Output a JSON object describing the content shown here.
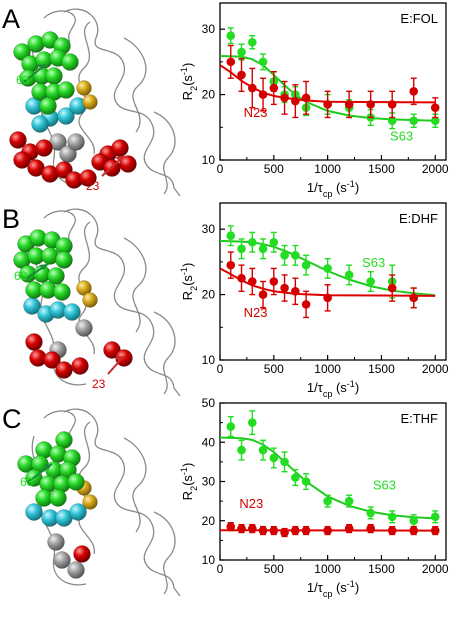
{
  "colors": {
    "green": "#22dd22",
    "green_fit": "#1ecb1e",
    "red": "#d40000",
    "red_fit": "#e00000",
    "cyan": "#33c6d6",
    "gold": "#d6a91c",
    "gray": "#9a9a9a",
    "backbone": "#8a8a8a",
    "axis": "#000000"
  },
  "panels": [
    {
      "letter": "A",
      "structure": {
        "green_label": "63",
        "red_label": "23"
      },
      "chart_data": {
        "type": "scatter",
        "title": "E:FOL",
        "xlabel_main": "1/τ",
        "xlabel_sub": "cp",
        "xlabel_unit": " (s",
        "xlabel_exp": "-1",
        "xlabel_close": ")",
        "ylabel_main": "R",
        "ylabel_sub": "2",
        "ylabel_unit": "(s",
        "ylabel_exp": "-1",
        "ylabel_close": ")",
        "xlim": [
          0,
          2100
        ],
        "ylim": [
          10,
          34
        ],
        "xticks": [
          0,
          500,
          1000,
          1500,
          2000
        ],
        "xtick_labels": [
          "0",
          "500",
          "1000",
          "1500",
          "2000"
        ],
        "yticks": [
          10,
          20,
          30
        ],
        "ytick_labels": [
          "10",
          "20",
          "30"
        ],
        "grid": false,
        "series": [
          {
            "name": "S63",
            "color_key": "green",
            "x": [
              100,
              200,
              300,
              400,
              500,
              600,
              700,
              800,
              1000,
              1200,
              1400,
              1600,
              1800,
              2000
            ],
            "y": [
              29,
              26.5,
              28,
              25,
              22,
              20,
              20,
              18,
              18.5,
              18,
              16.5,
              16,
              16,
              16
            ],
            "err": [
              1.2,
              1.2,
              1.0,
              1.2,
              1.5,
              1.2,
              1.2,
              1.2,
              1.5,
              1.2,
              1.2,
              1.2,
              1.0,
              1.0
            ],
            "fit": [
              [
                0,
                25.9
              ],
              [
                200,
                25.8
              ],
              [
                300,
                25.4
              ],
              [
                400,
                24.5
              ],
              [
                500,
                23.0
              ],
              [
                600,
                21.4
              ],
              [
                700,
                20.0
              ],
              [
                800,
                18.9
              ],
              [
                1000,
                17.5
              ],
              [
                1200,
                16.8
              ],
              [
                1400,
                16.4
              ],
              [
                1600,
                16.2
              ],
              [
                2000,
                16.0
              ]
            ]
          },
          {
            "name": "N23",
            "color_key": "red",
            "x": [
              100,
              200,
              300,
              400,
              500,
              600,
              700,
              800,
              1000,
              1200,
              1400,
              1600,
              1800,
              2000
            ],
            "y": [
              25,
              23,
              21,
              20,
              21,
              19.5,
              19,
              19.5,
              18.5,
              18.5,
              18.5,
              18.5,
              20.5,
              18
            ],
            "err": [
              2.5,
              2.5,
              3.0,
              2.5,
              2.5,
              2.5,
              2.5,
              2.5,
              2.0,
              2.0,
              2.0,
              2.0,
              2.0,
              1.5
            ],
            "fit": [
              [
                0,
                24.5
              ],
              [
                100,
                23.4
              ],
              [
                200,
                22.1
              ],
              [
                300,
                21.1
              ],
              [
                400,
                20.3
              ],
              [
                500,
                19.8
              ],
              [
                600,
                19.5
              ],
              [
                800,
                19.1
              ],
              [
                1000,
                18.9
              ],
              [
                2000,
                18.8
              ]
            ]
          }
        ],
        "annotations": [
          {
            "text": "N23",
            "color_key": "red",
            "x": 220,
            "y": 16.6
          },
          {
            "text": "S63",
            "color_key": "green",
            "x": 1580,
            "y": 13.0
          }
        ]
      }
    },
    {
      "letter": "B",
      "structure": {
        "green_label": "63",
        "red_label": "23"
      },
      "chart_data": {
        "type": "scatter",
        "title": "E:DHF",
        "xlabel_main": "1/τ",
        "xlabel_sub": "cp",
        "xlabel_unit": " (s",
        "xlabel_exp": "-1",
        "xlabel_close": ")",
        "ylabel_main": "R",
        "ylabel_sub": "2",
        "ylabel_unit": "(s",
        "ylabel_exp": "-1",
        "ylabel_close": ")",
        "xlim": [
          0,
          2100
        ],
        "ylim": [
          10,
          34
        ],
        "xticks": [
          0,
          500,
          1000,
          1500,
          2000
        ],
        "xtick_labels": [
          "0",
          "500",
          "1000",
          "1500",
          "2000"
        ],
        "yticks": [
          10,
          20,
          30
        ],
        "ytick_labels": [
          "10",
          "20",
          "30"
        ],
        "grid": false,
        "series": [
          {
            "name": "S63",
            "color_key": "green",
            "x": [
              100,
              200,
              300,
              400,
              500,
              600,
              700,
              800,
              1000,
              1200,
              1400,
              1600,
              1800
            ],
            "y": [
              29,
              27,
              28,
              27,
              28,
              26,
              26,
              24.5,
              24,
              23,
              22,
              22,
              19.5
            ],
            "err": [
              1.5,
              1.5,
              1.5,
              1.5,
              1.5,
              1.5,
              1.5,
              1.5,
              1.5,
              1.5,
              1.5,
              2.5,
              1.5
            ],
            "fit": [
              [
                0,
                28.2
              ],
              [
                200,
                28.1
              ],
              [
                300,
                28.0
              ],
              [
                400,
                27.7
              ],
              [
                500,
                27.3
              ],
              [
                600,
                26.7
              ],
              [
                700,
                26.0
              ],
              [
                800,
                25.2
              ],
              [
                1000,
                23.6
              ],
              [
                1200,
                22.3
              ],
              [
                1400,
                21.3
              ],
              [
                1600,
                20.6
              ],
              [
                1800,
                20.2
              ],
              [
                2000,
                19.9
              ]
            ]
          },
          {
            "name": "N23",
            "color_key": "red",
            "x": [
              100,
              200,
              300,
              400,
              500,
              600,
              700,
              800,
              1000,
              1600,
              1800
            ],
            "y": [
              24.5,
              22.5,
              22,
              20,
              22,
              21,
              20.5,
              18.5,
              19.5,
              21,
              19.5
            ],
            "err": [
              2.0,
              2.0,
              2.0,
              2.0,
              2.0,
              2.0,
              2.0,
              2.0,
              2.0,
              2.0,
              1.5
            ],
            "fit": [
              [
                0,
                24.0
              ],
              [
                100,
                23.1
              ],
              [
                200,
                22.2
              ],
              [
                300,
                21.4
              ],
              [
                400,
                20.9
              ],
              [
                500,
                20.5
              ],
              [
                700,
                20.1
              ],
              [
                1000,
                19.9
              ],
              [
                2000,
                19.8
              ]
            ]
          }
        ],
        "annotations": [
          {
            "text": "S63",
            "color_key": "green",
            "x": 1320,
            "y": 24.2
          },
          {
            "text": "N23",
            "color_key": "red",
            "x": 220,
            "y": 16.6
          }
        ]
      }
    },
    {
      "letter": "C",
      "structure": {
        "green_label": "63",
        "red_label": ""
      },
      "chart_data": {
        "type": "scatter",
        "title": "E:THF",
        "xlabel_main": "1/τ",
        "xlabel_sub": "cp",
        "xlabel_unit": " (s",
        "xlabel_exp": "-1",
        "xlabel_close": ")",
        "ylabel_main": "R",
        "ylabel_sub": "2",
        "ylabel_unit": "(s",
        "ylabel_exp": "-1",
        "ylabel_close": ")",
        "xlim": [
          0,
          2100
        ],
        "ylim": [
          10,
          50
        ],
        "xticks": [
          0,
          500,
          1000,
          1500,
          2000
        ],
        "xtick_labels": [
          "0",
          "500",
          "1000",
          "1500",
          "2000"
        ],
        "yticks": [
          10,
          20,
          30,
          40,
          50
        ],
        "ytick_labels": [
          "10",
          "20",
          "30",
          "40",
          "50"
        ],
        "grid": false,
        "series": [
          {
            "name": "S63",
            "color_key": "green",
            "x": [
              100,
              200,
              300,
              400,
              500,
              600,
              700,
              800,
              1000,
              1200,
              1400,
              1600,
              1800,
              2000
            ],
            "y": [
              44,
              38,
              45,
              38,
              36,
              35,
              31,
              30,
              25,
              25,
              22,
              21,
              20,
              21
            ],
            "err": [
              2.5,
              2.5,
              3.0,
              2.5,
              2.5,
              2.5,
              2.0,
              2.0,
              1.5,
              1.5,
              1.5,
              1.5,
              1.5,
              1.5
            ],
            "fit": [
              [
                0,
                41.2
              ],
              [
                200,
                41.0
              ],
              [
                300,
                40.6
              ],
              [
                400,
                39.4
              ],
              [
                500,
                37.5
              ],
              [
                600,
                35.0
              ],
              [
                700,
                32.5
              ],
              [
                800,
                30.0
              ],
              [
                1000,
                26.2
              ],
              [
                1200,
                23.8
              ],
              [
                1400,
                22.3
              ],
              [
                1600,
                21.4
              ],
              [
                1800,
                20.9
              ],
              [
                2000,
                20.6
              ]
            ]
          },
          {
            "name": "N23",
            "color_key": "red",
            "x": [
              100,
              200,
              300,
              400,
              500,
              600,
              700,
              800,
              1000,
              1200,
              1400,
              1600,
              1800,
              2000
            ],
            "y": [
              18.5,
              18,
              18,
              17.5,
              17.5,
              17,
              17.5,
              17.5,
              17.5,
              18,
              18,
              17.5,
              17.5,
              17.5
            ],
            "err": [
              1.0,
              1.0,
              1.0,
              1.0,
              1.0,
              1.0,
              1.0,
              1.0,
              1.0,
              1.0,
              1.0,
              1.0,
              1.0,
              1.0
            ],
            "fit": [
              [
                0,
                17.6
              ],
              [
                2000,
                17.5
              ]
            ]
          }
        ],
        "annotations": [
          {
            "text": "S63",
            "color_key": "green",
            "x": 1420,
            "y": 28.0
          },
          {
            "text": "N23",
            "color_key": "red",
            "x": 180,
            "y": 23.3
          }
        ]
      }
    }
  ]
}
